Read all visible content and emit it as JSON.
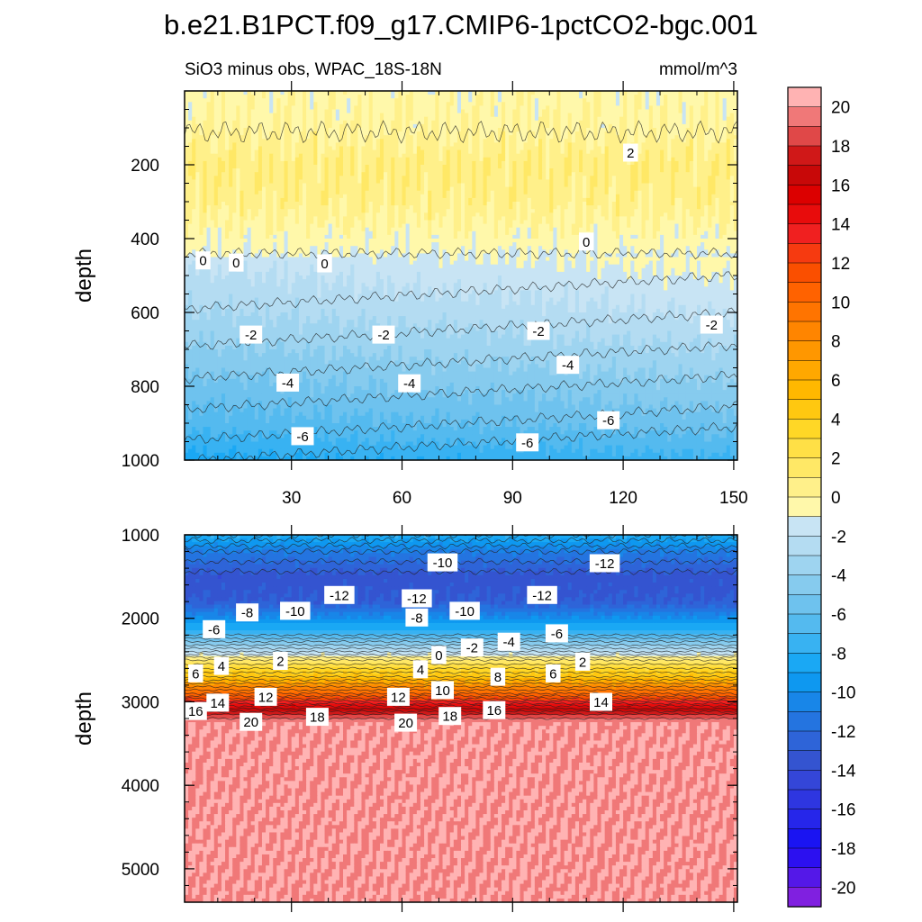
{
  "title": "b.e21.B1PCT.f09_g17.CMIP6-1pctCO2-bgc.001",
  "chart_data": [
    {
      "type": "contour",
      "name": "upper-panel",
      "left_label": "SiO3 minus obs, WPAC_18S-18N",
      "right_label": "mmol/m^3",
      "ylabel": "depth",
      "x_range": [
        1,
        151
      ],
      "y_range": [
        0,
        1000
      ],
      "y_reversed": true,
      "x_ticks": [
        30,
        60,
        90,
        120,
        150
      ],
      "y_ticks": [
        200,
        400,
        600,
        800,
        1000
      ],
      "profile": [
        {
          "depth": 0,
          "value": 0.6
        },
        {
          "depth": 100,
          "value": 0.9
        },
        {
          "depth": 200,
          "value": 1.8
        },
        {
          "depth": 300,
          "value": 1.5
        },
        {
          "depth": 400,
          "value": 0.4
        },
        {
          "depth": 500,
          "value": -0.6
        },
        {
          "depth": 600,
          "value": -1.5
        },
        {
          "depth": 700,
          "value": -2.6
        },
        {
          "depth": 800,
          "value": -3.8
        },
        {
          "depth": 900,
          "value": -5.0
        },
        {
          "depth": 1000,
          "value": -6.8
        }
      ],
      "contour_labels": [
        {
          "x": 122,
          "y": 167,
          "text": "2"
        },
        {
          "x": 110,
          "y": 408,
          "text": "0"
        },
        {
          "x": 6,
          "y": 459,
          "text": "0"
        },
        {
          "x": 15,
          "y": 465,
          "text": "0"
        },
        {
          "x": 39,
          "y": 467,
          "text": "0"
        },
        {
          "x": 19,
          "y": 660,
          "text": "-2"
        },
        {
          "x": 55,
          "y": 660,
          "text": "-2"
        },
        {
          "x": 97,
          "y": 650,
          "text": "-2"
        },
        {
          "x": 144,
          "y": 633,
          "text": "-2"
        },
        {
          "x": 29,
          "y": 790,
          "text": "-4"
        },
        {
          "x": 62,
          "y": 792,
          "text": "-4"
        },
        {
          "x": 105,
          "y": 742,
          "text": "-4"
        },
        {
          "x": 116,
          "y": 892,
          "text": "-6"
        },
        {
          "x": 33,
          "y": 935,
          "text": "-6"
        },
        {
          "x": 94,
          "y": 952,
          "text": "-6"
        }
      ]
    },
    {
      "type": "contour",
      "name": "lower-panel",
      "ylabel": "depth",
      "x_range": [
        1,
        151
      ],
      "y_range": [
        1000,
        5400
      ],
      "y_reversed": true,
      "y_ticks": [
        1000,
        2000,
        3000,
        4000,
        5000
      ],
      "profile": [
        {
          "depth": 1000,
          "value": -7
        },
        {
          "depth": 1200,
          "value": -10
        },
        {
          "depth": 1500,
          "value": -12.5
        },
        {
          "depth": 1800,
          "value": -12
        },
        {
          "depth": 2000,
          "value": -9
        },
        {
          "depth": 2200,
          "value": -6
        },
        {
          "depth": 2400,
          "value": -1
        },
        {
          "depth": 2500,
          "value": 2
        },
        {
          "depth": 2700,
          "value": 6
        },
        {
          "depth": 2900,
          "value": 11
        },
        {
          "depth": 3050,
          "value": 16
        },
        {
          "depth": 3150,
          "value": 19
        },
        {
          "depth": 3250,
          "value": 21
        },
        {
          "depth": 5400,
          "value": 21
        }
      ],
      "contour_labels": [
        {
          "x": 43,
          "y": 1720,
          "text": "-12"
        },
        {
          "x": 64,
          "y": 1760,
          "text": "-12"
        },
        {
          "x": 71,
          "y": 1330,
          "text": "-10"
        },
        {
          "x": 115,
          "y": 1340,
          "text": "-12"
        },
        {
          "x": 98,
          "y": 1720,
          "text": "-12"
        },
        {
          "x": 18,
          "y": 1930,
          "text": "-8"
        },
        {
          "x": 31,
          "y": 1910,
          "text": "-10"
        },
        {
          "x": 64,
          "y": 1990,
          "text": "-8"
        },
        {
          "x": 77,
          "y": 1910,
          "text": "-10"
        },
        {
          "x": 9,
          "y": 2130,
          "text": "-6"
        },
        {
          "x": 102,
          "y": 2180,
          "text": "-6"
        },
        {
          "x": 79,
          "y": 2350,
          "text": "-2"
        },
        {
          "x": 89,
          "y": 2280,
          "text": "-4"
        },
        {
          "x": 70,
          "y": 2440,
          "text": "0"
        },
        {
          "x": 4,
          "y": 2660,
          "text": "6"
        },
        {
          "x": 11,
          "y": 2570,
          "text": "4"
        },
        {
          "x": 27,
          "y": 2510,
          "text": "2"
        },
        {
          "x": 65,
          "y": 2610,
          "text": "4"
        },
        {
          "x": 86,
          "y": 2700,
          "text": "8"
        },
        {
          "x": 71,
          "y": 2860,
          "text": "10"
        },
        {
          "x": 101,
          "y": 2660,
          "text": "6"
        },
        {
          "x": 109,
          "y": 2520,
          "text": "2"
        },
        {
          "x": 23,
          "y": 2940,
          "text": "12"
        },
        {
          "x": 59,
          "y": 2940,
          "text": "12"
        },
        {
          "x": 10,
          "y": 3010,
          "text": "14"
        },
        {
          "x": 114,
          "y": 3000,
          "text": "14"
        },
        {
          "x": 4,
          "y": 3110,
          "text": "16"
        },
        {
          "x": 85,
          "y": 3100,
          "text": "16"
        },
        {
          "x": 19,
          "y": 3240,
          "text": "20"
        },
        {
          "x": 37,
          "y": 3180,
          "text": "18"
        },
        {
          "x": 61,
          "y": 3250,
          "text": "20"
        },
        {
          "x": 73,
          "y": 3170,
          "text": "18"
        }
      ]
    }
  ],
  "colorbar": {
    "tick_labels": [
      "20",
      "18",
      "16",
      "14",
      "12",
      "10",
      "8",
      "6",
      "4",
      "2",
      "0",
      "-2",
      "-4",
      "-6",
      "-8",
      "-10",
      "-12",
      "-14",
      "-16",
      "-18",
      "-20"
    ],
    "levels_top_to_bottom": [
      21,
      20,
      19,
      18,
      17,
      16,
      15,
      14,
      13,
      12,
      11,
      10,
      9,
      8,
      7,
      6,
      5,
      4,
      3,
      2,
      1,
      0,
      -1,
      -2,
      -3,
      -4,
      -5,
      -6,
      -7,
      -8,
      -9,
      -10,
      -11,
      -12,
      -13,
      -14,
      -15,
      -16,
      -17,
      -18,
      -19,
      -20
    ],
    "colors_top_to_bottom": [
      "#ffb3b3",
      "#f07878",
      "#e04848",
      "#d01818",
      "#c80808",
      "#dc0000",
      "#e80c0c",
      "#f02020",
      "#f63a10",
      "#fa4f00",
      "#ff6200",
      "#ff7400",
      "#ff8500",
      "#ff9700",
      "#ffa800",
      "#ffb800",
      "#ffc810",
      "#ffd726",
      "#ffe046",
      "#ffe866",
      "#fff08a",
      "#fff8aa",
      "#c8e4f4",
      "#b4dcf2",
      "#9ed4f0",
      "#86cbee",
      "#6ec2ee",
      "#54baef",
      "#38b2f2",
      "#1aa8f4",
      "#0e98f0",
      "#1886e8",
      "#2474e0",
      "#2e64d8",
      "#3454d0",
      "#3446d8",
      "#2e36e0",
      "#2626ea",
      "#1a14f2",
      "#2c10f0",
      "#5418e8",
      "#8020e0"
    ]
  }
}
